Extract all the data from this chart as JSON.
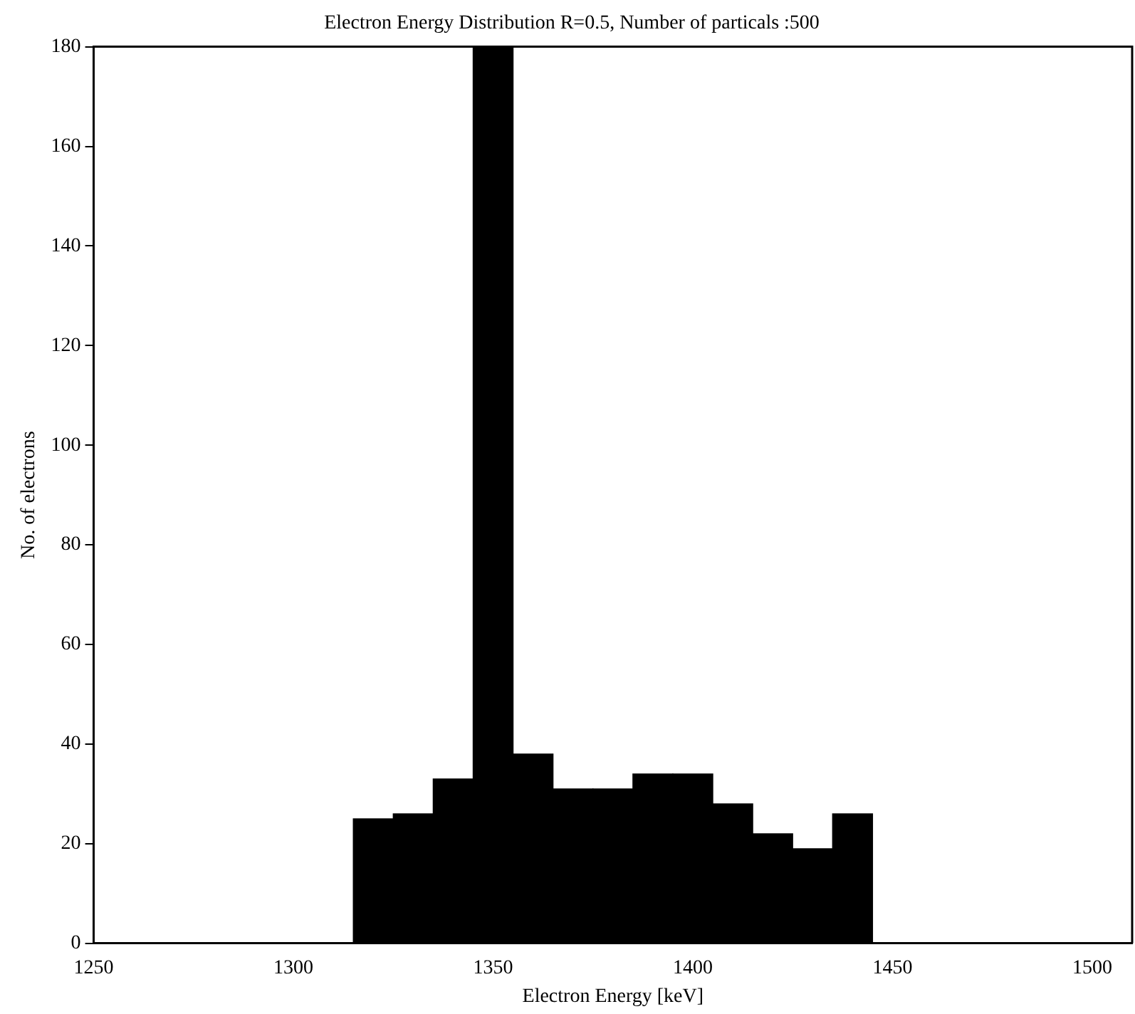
{
  "chart_data": {
    "type": "histogram",
    "title": "Electron Energy Distribution R=0.5, Number of particals :500",
    "xlabel": "Electron Energy [keV]",
    "ylabel": "No. of electrons",
    "bins": [
      1315,
      1325,
      1335,
      1345,
      1355,
      1365,
      1375,
      1385,
      1395,
      1405,
      1415,
      1425,
      1435,
      1445
    ],
    "values": [
      25,
      26,
      33,
      180,
      38,
      31,
      31,
      34,
      34,
      28,
      22,
      19,
      26
    ],
    "color": "#000000",
    "xlim": [
      1250,
      1510
    ],
    "xticks": [
      1250,
      1300,
      1350,
      1400,
      1450,
      1500
    ],
    "ylim": [
      0,
      180
    ],
    "yticks": [
      0,
      20,
      40,
      60,
      80,
      100,
      120,
      140,
      160,
      180
    ],
    "grid": false,
    "legend": false
  }
}
